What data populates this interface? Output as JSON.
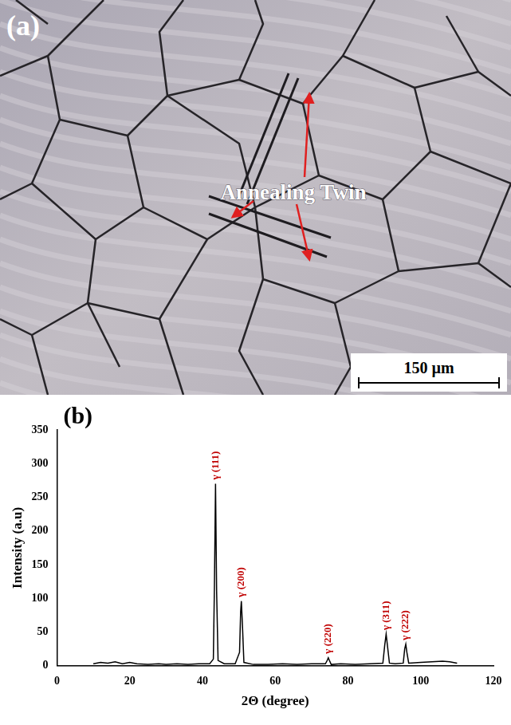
{
  "micrograph": {
    "panel_label": "(a)",
    "annotation": "Annealing Twin",
    "scale_bar": "150 µm"
  },
  "chart_data": {
    "panel_label": "(b)",
    "type": "line",
    "x_label": "2Θ (degree)",
    "y_label": "Intensity (a.u)",
    "color": "#000000",
    "grid": false,
    "xlim": [
      0,
      120
    ],
    "xticks": [
      0,
      20,
      40,
      60,
      80,
      100,
      120
    ],
    "ylim": [
      0,
      350
    ],
    "yticks": [
      0,
      50,
      100,
      150,
      200,
      250,
      300,
      350
    ],
    "x": [
      10,
      12,
      14,
      16,
      18,
      20,
      22,
      25,
      28,
      30,
      33,
      36,
      39,
      42,
      43,
      43.3,
      43.6,
      43.9,
      44.3,
      46,
      49,
      50.2,
      50.5,
      50.7,
      51.0,
      51.4,
      54,
      58,
      62,
      66,
      70,
      73.8,
      74.3,
      74.6,
      74.9,
      75.4,
      78,
      82,
      86,
      89.6,
      90.1,
      90.5,
      90.9,
      91.4,
      93,
      95.2,
      95.6,
      95.9,
      96.2,
      96.7,
      100,
      103,
      106,
      108,
      110
    ],
    "values": [
      3,
      5,
      4,
      6,
      3,
      5,
      3,
      2,
      3,
      2,
      3,
      2,
      3,
      3,
      10,
      120,
      270,
      110,
      8,
      3,
      3,
      20,
      80,
      96,
      60,
      5,
      2,
      2,
      3,
      2,
      3,
      3,
      8,
      12,
      8,
      2,
      3,
      2,
      3,
      4,
      30,
      47,
      28,
      4,
      3,
      4,
      25,
      32,
      20,
      4,
      5,
      6,
      7,
      6,
      4
    ],
    "annotations": [
      {
        "text": "γ (111)",
        "x": 43.6,
        "y": 270,
        "color": "#c00000"
      },
      {
        "text": "γ (200)",
        "x": 50.7,
        "y": 96,
        "color": "#c00000"
      },
      {
        "text": "γ (220)",
        "x": 74.6,
        "y": 12,
        "color": "#c00000"
      },
      {
        "text": "γ (311)",
        "x": 90.5,
        "y": 47,
        "color": "#c00000"
      },
      {
        "text": "γ (222)",
        "x": 95.9,
        "y": 32,
        "color": "#c00000"
      }
    ]
  }
}
